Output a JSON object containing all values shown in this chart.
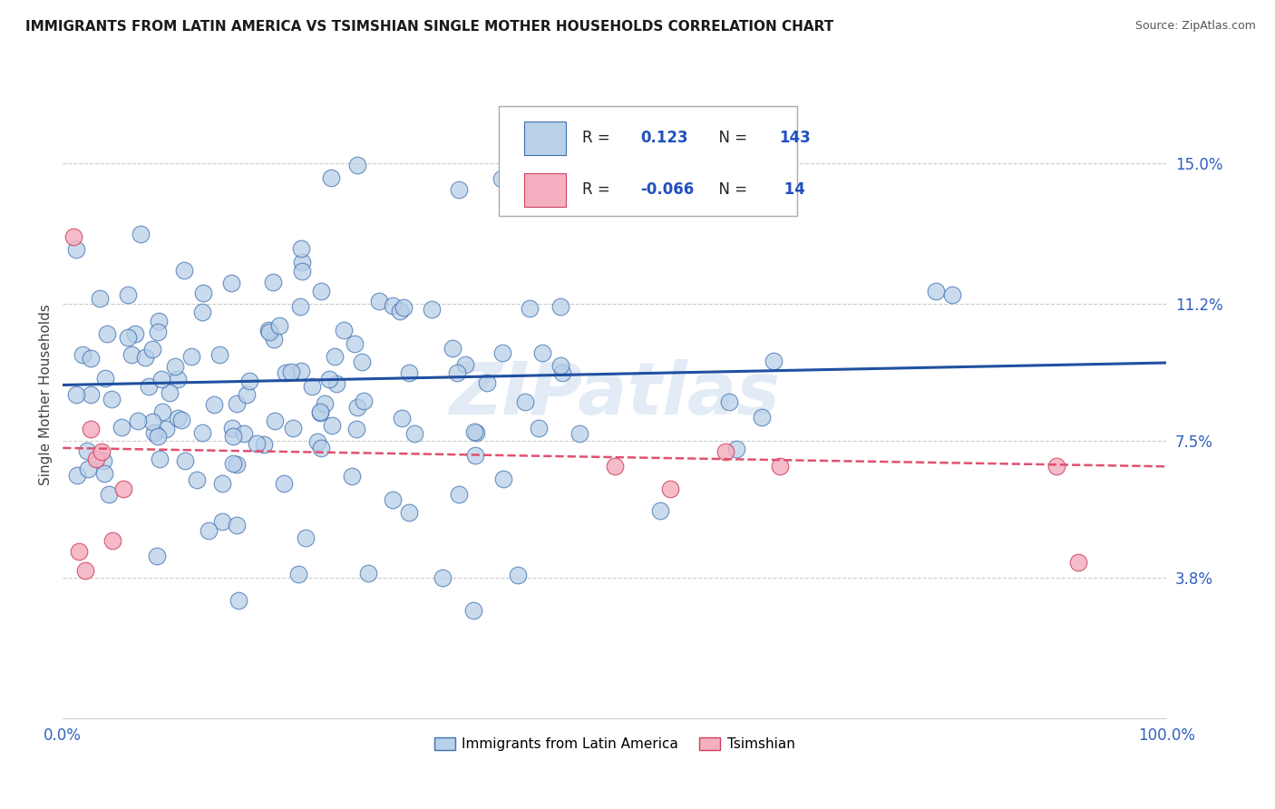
{
  "title": "IMMIGRANTS FROM LATIN AMERICA VS TSIMSHIAN SINGLE MOTHER HOUSEHOLDS CORRELATION CHART",
  "source": "Source: ZipAtlas.com",
  "ylabel": "Single Mother Households",
  "r_blue": 0.123,
  "n_blue": 143,
  "r_pink": -0.066,
  "n_pink": 14,
  "xlim": [
    0.0,
    1.0
  ],
  "ylim": [
    0.0,
    0.175
  ],
  "yticks": [
    0.038,
    0.075,
    0.112,
    0.15
  ],
  "ytick_labels": [
    "3.8%",
    "7.5%",
    "11.2%",
    "15.0%"
  ],
  "xtick_labels": [
    "0.0%",
    "100.0%"
  ],
  "blue_fill": "#b8d0e8",
  "blue_edge": "#4070b0",
  "pink_fill": "#f4b0c0",
  "pink_edge": "#d04060",
  "line_blue_color": "#2050a0",
  "line_pink_color": "#e05070",
  "grid_color": "#cccccc",
  "background": "#ffffff",
  "legend_label_blue": "Immigrants from Latin America",
  "legend_label_pink": "Tsimshian",
  "watermark": "ZIPatlas",
  "blue_line_y0": 0.09,
  "blue_line_y1": 0.096,
  "pink_line_y0": 0.073,
  "pink_line_y1": 0.068
}
